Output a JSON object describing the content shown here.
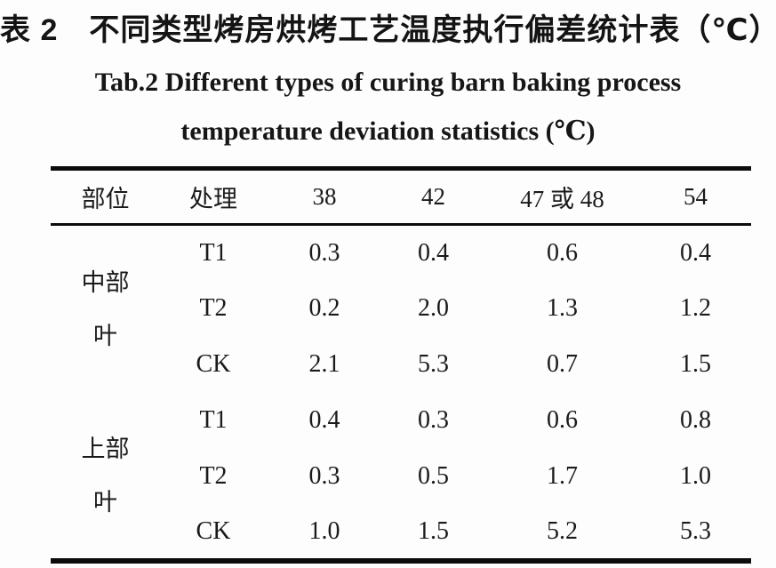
{
  "captions": {
    "chinese": "表 2　不同类型烤房烘烤工艺温度执行偏差统计表（℃）",
    "english_line1": "Tab.2 Different types of curing barn baking process",
    "english_line2": "temperature deviation statistics (℃)"
  },
  "chart_data": {
    "type": "table",
    "title": "表 2 不同类型烤房烘烤工艺温度执行偏差统计表（℃） / Tab.2 Different types of curing barn baking process temperature deviation statistics (℃)",
    "columns": [
      "部位",
      "处理",
      "38",
      "42",
      "47 或 48",
      "54"
    ],
    "groups": [
      {
        "label_line1": "中部",
        "label_line2": "叶",
        "rows": [
          {
            "treatment": "T1",
            "values": [
              "0.3",
              "0.4",
              "0.6",
              "0.4"
            ]
          },
          {
            "treatment": "T2",
            "values": [
              "0.2",
              "2.0",
              "1.3",
              "1.2"
            ]
          },
          {
            "treatment": "CK",
            "values": [
              "2.1",
              "5.3",
              "0.7",
              "1.5"
            ]
          }
        ]
      },
      {
        "label_line1": "上部",
        "label_line2": "叶",
        "rows": [
          {
            "treatment": "T1",
            "values": [
              "0.4",
              "0.3",
              "0.6",
              "0.8"
            ]
          },
          {
            "treatment": "T2",
            "values": [
              "0.3",
              "0.5",
              "1.7",
              "1.0"
            ]
          },
          {
            "treatment": "CK",
            "values": [
              "1.0",
              "1.5",
              "5.2",
              "5.3"
            ]
          }
        ]
      }
    ]
  }
}
